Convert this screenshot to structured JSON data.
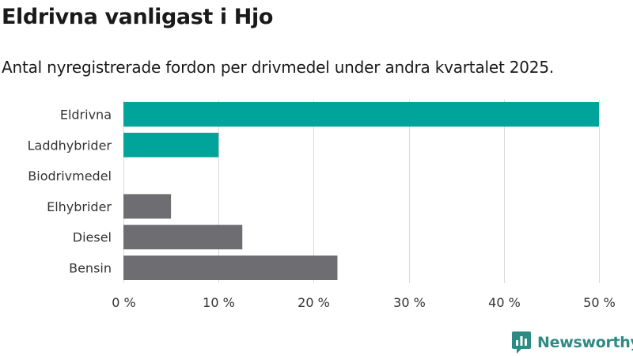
{
  "header": {
    "title": "Eldrivna vanligast i Hjo",
    "subtitle": "Antal nyregistrerade fordon per drivmedel under andra kvartalet 2025."
  },
  "branding": {
    "logo_text": "Newsworthy",
    "color": "#2e8b84"
  },
  "colors": {
    "highlight": "#00a49a",
    "muted": "#6e6d72",
    "grid": "#d9d9d9",
    "text": "#333333"
  },
  "chart_data": {
    "type": "bar",
    "orientation": "horizontal",
    "title": "Eldrivna vanligast i Hjo",
    "subtitle": "Antal nyregistrerade fordon per drivmedel under andra kvartalet 2025.",
    "categories": [
      "Eldrivna",
      "Laddhybrider",
      "Biodrivmedel",
      "Elhybrider",
      "Diesel",
      "Bensin"
    ],
    "values": [
      50,
      10,
      0,
      5,
      12.5,
      22.5
    ],
    "bar_colors": [
      "#00a49a",
      "#00a49a",
      "#00a49a",
      "#6e6d72",
      "#6e6d72",
      "#6e6d72"
    ],
    "xlim": [
      0,
      50
    ],
    "xticks": [
      0,
      10,
      20,
      30,
      40,
      50
    ],
    "xtick_labels": [
      "0 %",
      "10 %",
      "20 %",
      "30 %",
      "40 %",
      "50 %"
    ],
    "xlabel": "",
    "ylabel": "",
    "grid": true,
    "legend": "none"
  }
}
